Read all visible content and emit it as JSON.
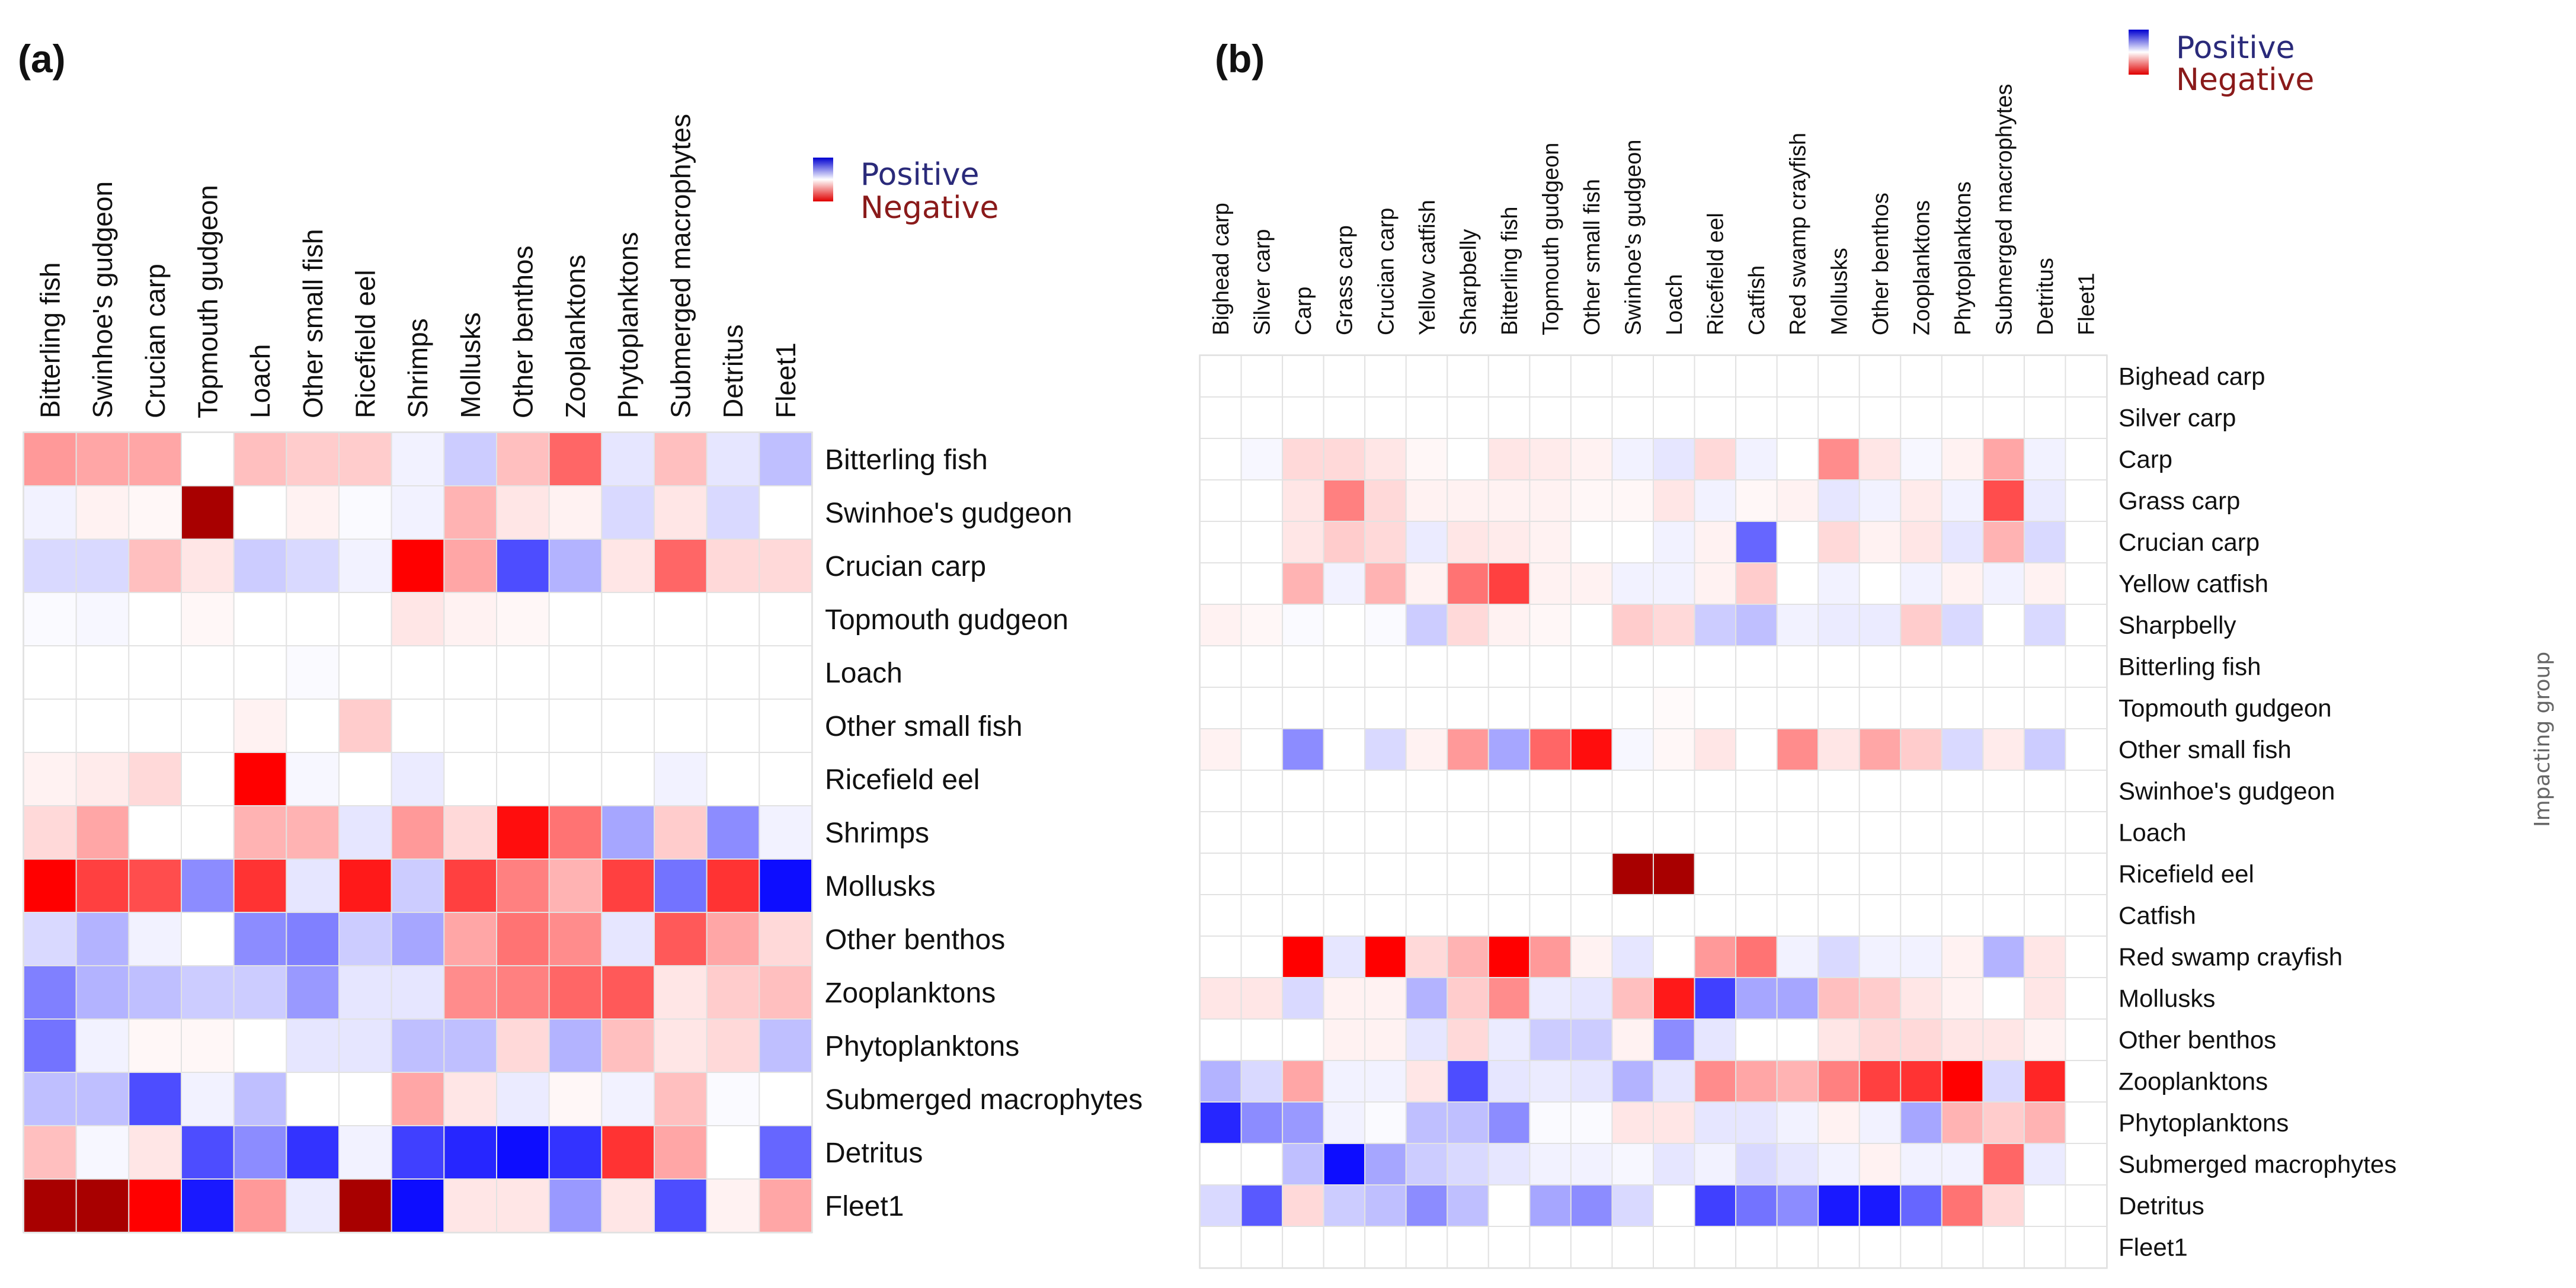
{
  "chart_data": [
    {
      "type": "heatmap",
      "panel": "(a)",
      "columns": [
        "Bitterling fish",
        "Swinhoe's gudgeon",
        "Crucian carp",
        "Topmouth gudgeon",
        "Loach",
        "Other small fish",
        "Ricefield eel",
        "Shrimps",
        "Mollusks",
        "Other benthos",
        "Zooplanktons",
        "Phytoplanktons",
        "Submerged macrophytes",
        "Detritus",
        "Fleet1"
      ],
      "rows": [
        "Bitterling fish",
        "Swinhoe's gudgeon",
        "Crucian carp",
        "Topmouth gudgeon",
        "Loach",
        "Other small fish",
        "Ricefield eel",
        "Shrimps",
        "Mollusks",
        "Other benthos",
        "Zooplanktons",
        "Phytoplanktons",
        "Submerged macrophytes",
        "Detritus",
        "Fleet1"
      ],
      "value_range": [
        -1,
        1
      ],
      "legend": {
        "positive": "Positive",
        "negative": "Negative"
      },
      "values": [
        [
          -0.4,
          -0.35,
          -0.35,
          0,
          -0.25,
          -0.2,
          -0.2,
          0.05,
          0.2,
          -0.25,
          -0.6,
          0.1,
          -0.25,
          0.1,
          0.25
        ],
        [
          0.05,
          -0.05,
          -0.03,
          -1.3,
          0,
          -0.05,
          0.02,
          0.05,
          -0.3,
          -0.1,
          -0.05,
          0.15,
          -0.1,
          0.15,
          0
        ],
        [
          0.15,
          0.15,
          -0.25,
          -0.1,
          0.2,
          0.15,
          0.05,
          -1.1,
          -0.35,
          0.7,
          0.3,
          -0.1,
          -0.6,
          -0.15,
          -0.15
        ],
        [
          0.02,
          0.03,
          0,
          -0.03,
          0,
          0,
          0,
          -0.1,
          -0.05,
          -0.03,
          0,
          0,
          0,
          0,
          0
        ],
        [
          0,
          0,
          0,
          0,
          0,
          0.02,
          0,
          0,
          0,
          0,
          0,
          0,
          0,
          0,
          0
        ],
        [
          0,
          0,
          0,
          0,
          -0.05,
          0,
          -0.2,
          0,
          0,
          0,
          0,
          0,
          0,
          0,
          0
        ],
        [
          -0.05,
          -0.08,
          -0.15,
          0,
          -1.0,
          0.03,
          0,
          0.08,
          0,
          0,
          0,
          0,
          0.05,
          0,
          0
        ],
        [
          -0.15,
          -0.35,
          0,
          0,
          -0.3,
          -0.3,
          0.1,
          -0.4,
          -0.15,
          -0.95,
          -0.55,
          0.35,
          -0.2,
          0.45,
          0.05
        ],
        [
          -1.05,
          -0.75,
          -0.7,
          0.45,
          -0.8,
          0.1,
          -0.9,
          0.2,
          -0.75,
          -0.5,
          -0.3,
          -0.75,
          0.55,
          -0.8,
          0.95
        ],
        [
          0.15,
          0.3,
          0.05,
          0,
          0.45,
          0.5,
          0.2,
          0.35,
          -0.35,
          -0.55,
          -0.45,
          0.1,
          -0.65,
          -0.35,
          -0.15
        ],
        [
          0.5,
          0.3,
          0.25,
          0.2,
          0.2,
          0.4,
          0.1,
          0.1,
          -0.45,
          -0.5,
          -0.6,
          -0.65,
          -0.1,
          -0.2,
          -0.25
        ],
        [
          0.55,
          0.05,
          -0.03,
          -0.03,
          0,
          0.1,
          0.1,
          0.25,
          0.25,
          -0.15,
          0.3,
          -0.25,
          -0.1,
          -0.15,
          0.25
        ],
        [
          0.25,
          0.25,
          0.7,
          0.05,
          0.25,
          0,
          0,
          -0.35,
          -0.1,
          0.08,
          -0.03,
          0.05,
          -0.25,
          0.02,
          0
        ],
        [
          -0.25,
          0.03,
          -0.1,
          0.7,
          0.45,
          0.8,
          0.05,
          0.75,
          0.85,
          0.95,
          0.8,
          -0.8,
          -0.35,
          0,
          0.6
        ],
        [
          -1.25,
          -1.25,
          -1.0,
          0.9,
          -0.4,
          0.08,
          -1.3,
          0.95,
          -0.1,
          -0.1,
          0.4,
          -0.1,
          0.7,
          -0.05,
          -0.35
        ]
      ]
    },
    {
      "type": "heatmap",
      "panel": "(b)",
      "columns": [
        "Bighead carp",
        "Silver carp",
        "Carp",
        "Grass carp",
        "Crucian carp",
        "Yellow catfish",
        "Sharpbelly",
        "Bitterling fish",
        "Topmouth gudgeon",
        "Other small fish",
        "Swinhoe's gudgeon",
        "Loach",
        "Ricefield eel",
        "Catfish",
        "Red swamp crayfish",
        "Mollusks",
        "Other benthos",
        "Zooplanktons",
        "Phytoplanktons",
        "Submerged macrophytes",
        "Detritus",
        "Fleet1"
      ],
      "rows": [
        "Bighead carp",
        "Silver carp",
        "Carp",
        "Grass carp",
        "Crucian carp",
        "Yellow  catfish",
        "Sharpbelly",
        "Bitterling fish",
        "Topmouth gudgeon",
        "Other small fish",
        "Swinhoe's gudgeon",
        "Loach",
        "Ricefield eel",
        "Catfish",
        "Red swamp crayfish",
        "Mollusks",
        "Other benthos",
        "Zooplanktons",
        "Phytoplanktons",
        "Submerged macrophytes",
        "Detritus",
        "Fleet1"
      ],
      "side_label": "Impacting group",
      "value_range": [
        -1,
        1
      ],
      "legend": {
        "positive": "Positive",
        "negative": "Negative"
      },
      "values": [
        [
          0,
          0,
          0,
          0,
          0,
          0,
          0,
          0,
          0,
          0,
          0,
          0,
          0,
          0,
          0,
          0,
          0,
          0,
          0,
          0,
          0,
          0
        ],
        [
          0,
          0,
          0,
          0,
          0,
          0,
          0,
          0,
          0,
          0,
          0,
          0,
          0,
          0,
          0,
          0,
          0,
          0,
          0,
          0,
          0,
          0
        ],
        [
          0,
          0.03,
          -0.15,
          -0.15,
          -0.1,
          -0.03,
          0,
          -0.1,
          -0.08,
          -0.05,
          0.05,
          0.1,
          -0.15,
          0.05,
          0,
          -0.45,
          -0.1,
          0.03,
          -0.05,
          -0.35,
          0.05,
          0
        ],
        [
          0,
          0,
          -0.1,
          -0.5,
          -0.15,
          -0.05,
          -0.05,
          -0.05,
          -0.05,
          -0.03,
          -0.03,
          -0.1,
          0.05,
          -0.03,
          -0.05,
          0.1,
          0.05,
          -0.08,
          0.05,
          -0.7,
          0.08,
          0
        ],
        [
          0,
          0,
          -0.1,
          -0.2,
          -0.15,
          0.08,
          -0.1,
          -0.08,
          -0.05,
          0,
          0,
          0.05,
          -0.05,
          0.6,
          0,
          -0.15,
          -0.05,
          -0.1,
          0.1,
          -0.3,
          0.15,
          0
        ],
        [
          0,
          0,
          -0.3,
          0.05,
          -0.3,
          -0.05,
          -0.55,
          -0.75,
          -0.05,
          -0.05,
          0.05,
          0.05,
          -0.05,
          -0.2,
          0,
          0.05,
          0,
          0.05,
          -0.05,
          0.05,
          -0.05,
          0
        ],
        [
          -0.05,
          -0.03,
          0.02,
          0,
          0.02,
          0.2,
          -0.15,
          -0.05,
          -0.03,
          0,
          -0.2,
          -0.15,
          0.2,
          0.25,
          0.05,
          0.08,
          0.08,
          -0.2,
          0.15,
          0,
          0.15,
          0
        ],
        [
          0,
          0,
          0,
          0,
          0,
          0,
          0,
          0,
          0,
          0,
          0,
          0,
          0,
          0,
          0,
          0,
          0,
          0,
          0,
          0,
          0,
          0
        ],
        [
          0,
          0,
          0,
          0,
          0,
          0,
          0,
          0,
          0,
          0,
          0,
          -0.02,
          0,
          0,
          0,
          0,
          0,
          0,
          0,
          0,
          0,
          0
        ],
        [
          -0.05,
          0,
          0.45,
          0,
          0.15,
          -0.05,
          -0.4,
          0.35,
          -0.6,
          -0.95,
          0.03,
          -0.03,
          -0.1,
          0,
          -0.45,
          -0.1,
          -0.35,
          -0.2,
          0.15,
          -0.08,
          0.2,
          0
        ],
        [
          0,
          0,
          0,
          0,
          0,
          0,
          0,
          0,
          0,
          0,
          0,
          0,
          0,
          0,
          0,
          0,
          0,
          0,
          0,
          0,
          0,
          0
        ],
        [
          0,
          0,
          0,
          0,
          0,
          0,
          0,
          0,
          0,
          0,
          0,
          0,
          0,
          0,
          0,
          0,
          0,
          0,
          0,
          0,
          0,
          0
        ],
        [
          0,
          0,
          0,
          0,
          0,
          0,
          0,
          0,
          0,
          0,
          -1.3,
          -1.3,
          0,
          0,
          0,
          0,
          0,
          0,
          0,
          0,
          0,
          0
        ],
        [
          0,
          0,
          0,
          0,
          0,
          0,
          0,
          0,
          0,
          0,
          0,
          0,
          0,
          0,
          0,
          0,
          0,
          0,
          0,
          0,
          0,
          0
        ],
        [
          0,
          0,
          -1.05,
          0.1,
          -1.0,
          -0.15,
          -0.3,
          -1.0,
          -0.4,
          -0.05,
          0.1,
          0,
          -0.4,
          -0.55,
          0.05,
          0.15,
          0.05,
          0.05,
          -0.05,
          0.3,
          -0.1,
          0
        ],
        [
          -0.1,
          -0.1,
          0.15,
          -0.05,
          -0.05,
          0.3,
          -0.2,
          -0.45,
          0.08,
          0.1,
          -0.25,
          -0.9,
          0.75,
          0.35,
          0.35,
          -0.25,
          -0.2,
          -0.1,
          -0.05,
          0,
          -0.1,
          0
        ],
        [
          0,
          0,
          0,
          -0.05,
          -0.05,
          0.1,
          -0.15,
          0.08,
          0.2,
          0.2,
          -0.05,
          0.45,
          0.1,
          0,
          0,
          -0.1,
          -0.15,
          -0.15,
          -0.1,
          -0.1,
          -0.05,
          0
        ],
        [
          0.3,
          0.15,
          -0.35,
          0.05,
          0.05,
          -0.1,
          0.7,
          0.1,
          0.08,
          0.1,
          0.3,
          0.1,
          -0.45,
          -0.35,
          -0.3,
          -0.5,
          -0.75,
          -0.8,
          -1.0,
          0.15,
          -0.85,
          0
        ],
        [
          0.85,
          0.45,
          0.4,
          0.05,
          0.02,
          0.25,
          0.25,
          0.45,
          0.02,
          0.02,
          -0.1,
          -0.1,
          0.1,
          0.1,
          0.05,
          -0.05,
          0.05,
          0.35,
          -0.3,
          -0.2,
          -0.3,
          0
        ],
        [
          0,
          0,
          0.25,
          0.95,
          0.35,
          0.2,
          0.15,
          0.1,
          0.05,
          0.05,
          0.03,
          0.1,
          0.05,
          0.15,
          0.1,
          0.05,
          -0.05,
          0.05,
          0.05,
          -0.6,
          0.08,
          0
        ],
        [
          0.15,
          0.65,
          -0.15,
          0.2,
          0.25,
          0.45,
          0.25,
          0,
          0.35,
          0.45,
          0.15,
          0,
          0.75,
          0.55,
          0.45,
          0.9,
          0.9,
          0.6,
          -0.55,
          -0.15,
          0,
          0
        ],
        [
          0,
          0,
          0,
          0,
          0,
          0,
          0,
          0,
          0,
          0,
          0,
          0,
          0,
          0,
          0,
          0,
          0,
          0,
          0,
          0,
          0,
          0
        ]
      ]
    }
  ]
}
